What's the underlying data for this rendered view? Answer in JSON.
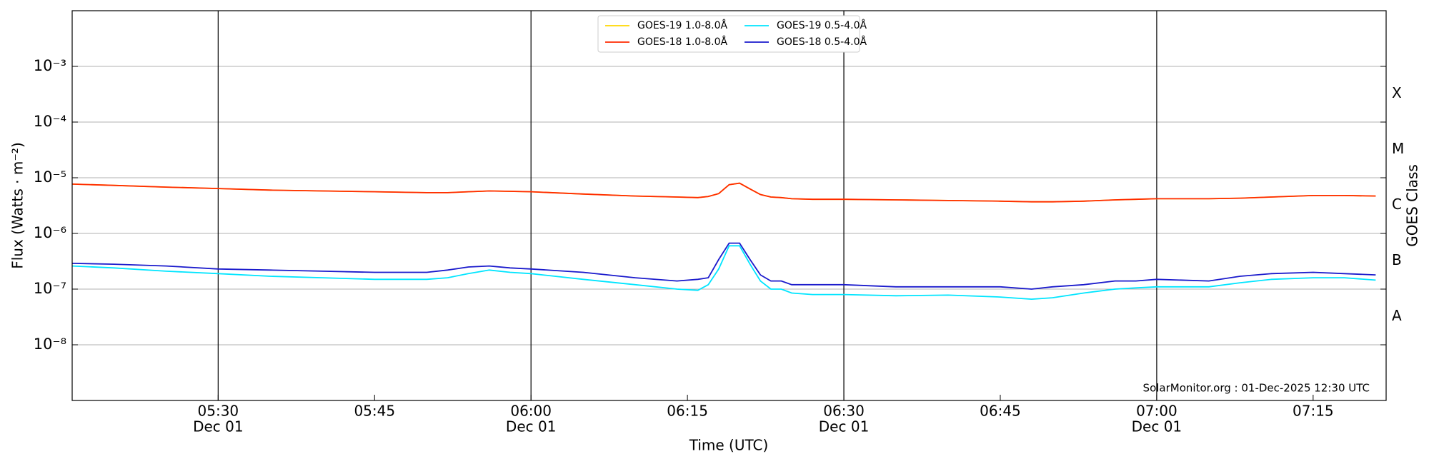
{
  "chart_data": {
    "type": "line",
    "xlabel": "Time (UTC)",
    "ylabel": "Flux (Watts · m⁻²)",
    "y2label": "GOES Class",
    "annotation": "SolarMonitor.org : 01-Dec-2025 12:30 UTC",
    "log_y": true,
    "grid": true,
    "legend": "top",
    "x": [
      "05:16",
      "05:20",
      "05:25",
      "05:30",
      "05:35",
      "05:40",
      "05:45",
      "05:50",
      "05:52",
      "05:54",
      "05:56",
      "05:58",
      "06:00",
      "06:05",
      "06:10",
      "06:14",
      "06:16",
      "06:17",
      "06:18",
      "06:19",
      "06:20",
      "06:21",
      "06:22",
      "06:23",
      "06:24",
      "06:25",
      "06:27",
      "06:30",
      "06:35",
      "06:40",
      "06:45",
      "06:48",
      "06:50",
      "06:53",
      "06:56",
      "06:58",
      "07:00",
      "07:05",
      "07:08",
      "07:11",
      "07:15",
      "07:18",
      "07:21"
    ],
    "xlim": [
      "05:16",
      "07:22"
    ],
    "xticks": [
      "05:30",
      "05:45",
      "06:00",
      "06:15",
      "06:30",
      "06:45",
      "07:00",
      "07:15"
    ],
    "xtick_dates": [
      "Dec 01",
      null,
      "Dec 01",
      null,
      "Dec 01",
      null,
      "Dec 01",
      null
    ],
    "ylim": [
      1e-09,
      0.01
    ],
    "yticks": [
      {
        "value": 1e-08,
        "label": "10⁻⁸"
      },
      {
        "value": 1e-07,
        "label": "10⁻⁷"
      },
      {
        "value": 1e-06,
        "label": "10⁻⁶"
      },
      {
        "value": 1e-05,
        "label": "10⁻⁵"
      },
      {
        "value": 0.0001,
        "label": "10⁻⁴"
      },
      {
        "value": 0.001,
        "label": "10⁻³"
      }
    ],
    "y2lim": [
      1e-09,
      0.01
    ],
    "y2ticks": [
      {
        "value": 3.2e-08,
        "label": "A"
      },
      {
        "value": 3.2e-07,
        "label": "B"
      },
      {
        "value": 3.2e-06,
        "label": "C"
      },
      {
        "value": 3.2e-05,
        "label": "M"
      },
      {
        "value": 0.00032,
        "label": "X"
      }
    ],
    "series": [
      {
        "name": "GOES-19 1.0-8.0Å",
        "color": "#ffd700",
        "values": [
          7.7e-06,
          7.3e-06,
          6.8e-06,
          6.4e-06,
          6e-06,
          5.8e-06,
          5.6e-06,
          5.4e-06,
          5.4e-06,
          5.6e-06,
          5.8e-06,
          5.7e-06,
          5.6e-06,
          5.1e-06,
          4.7e-06,
          4.5e-06,
          4.4e-06,
          4.6e-06,
          5.2e-06,
          7.5e-06,
          8e-06,
          6.3e-06,
          5e-06,
          4.5e-06,
          4.4e-06,
          4.2e-06,
          4.1e-06,
          4.1e-06,
          4e-06,
          3.9e-06,
          3.8e-06,
          3.7e-06,
          3.7e-06,
          3.8e-06,
          4e-06,
          4.1e-06,
          4.2e-06,
          4.2e-06,
          4.3e-06,
          4.5e-06,
          4.8e-06,
          4.8e-06,
          4.7e-06
        ]
      },
      {
        "name": "GOES-18 1.0-8.0Å",
        "color": "#ff2a00",
        "values": [
          7.7e-06,
          7.3e-06,
          6.8e-06,
          6.4e-06,
          6e-06,
          5.8e-06,
          5.6e-06,
          5.4e-06,
          5.4e-06,
          5.6e-06,
          5.8e-06,
          5.7e-06,
          5.6e-06,
          5.1e-06,
          4.7e-06,
          4.5e-06,
          4.4e-06,
          4.6e-06,
          5.2e-06,
          7.5e-06,
          8e-06,
          6.3e-06,
          5e-06,
          4.5e-06,
          4.4e-06,
          4.2e-06,
          4.1e-06,
          4.1e-06,
          4e-06,
          3.9e-06,
          3.8e-06,
          3.7e-06,
          3.7e-06,
          3.8e-06,
          4e-06,
          4.1e-06,
          4.2e-06,
          4.2e-06,
          4.3e-06,
          4.5e-06,
          4.8e-06,
          4.8e-06,
          4.7e-06
        ]
      },
      {
        "name": "GOES-19 0.5-4.0Å",
        "color": "#00e5ff",
        "values": [
          2.6e-07,
          2.4e-07,
          2.1e-07,
          1.9e-07,
          1.7e-07,
          1.6e-07,
          1.5e-07,
          1.5e-07,
          1.6e-07,
          1.9e-07,
          2.2e-07,
          2e-07,
          1.9e-07,
          1.5e-07,
          1.2e-07,
          1e-07,
          9.5e-08,
          1.2e-07,
          2.3e-07,
          6e-07,
          6e-07,
          2.8e-07,
          1.4e-07,
          1e-07,
          1e-07,
          8.5e-08,
          8e-08,
          8e-08,
          7.6e-08,
          7.8e-08,
          7.2e-08,
          6.6e-08,
          7e-08,
          8.5e-08,
          1e-07,
          1.05e-07,
          1.1e-07,
          1.1e-07,
          1.3e-07,
          1.5e-07,
          1.6e-07,
          1.6e-07,
          1.45e-07
        ]
      },
      {
        "name": "GOES-18 0.5-4.0Å",
        "color": "#1a1acc",
        "values": [
          2.9e-07,
          2.8e-07,
          2.6e-07,
          2.3e-07,
          2.2e-07,
          2.1e-07,
          2e-07,
          2e-07,
          2.2e-07,
          2.5e-07,
          2.6e-07,
          2.4e-07,
          2.3e-07,
          2e-07,
          1.6e-07,
          1.4e-07,
          1.5e-07,
          1.6e-07,
          3.4e-07,
          6.7e-07,
          6.7e-07,
          3.4e-07,
          1.8e-07,
          1.4e-07,
          1.4e-07,
          1.2e-07,
          1.2e-07,
          1.2e-07,
          1.1e-07,
          1.1e-07,
          1.1e-07,
          1e-07,
          1.1e-07,
          1.2e-07,
          1.4e-07,
          1.4e-07,
          1.5e-07,
          1.4e-07,
          1.7e-07,
          1.9e-07,
          2e-07,
          1.9e-07,
          1.8e-07
        ]
      }
    ]
  }
}
